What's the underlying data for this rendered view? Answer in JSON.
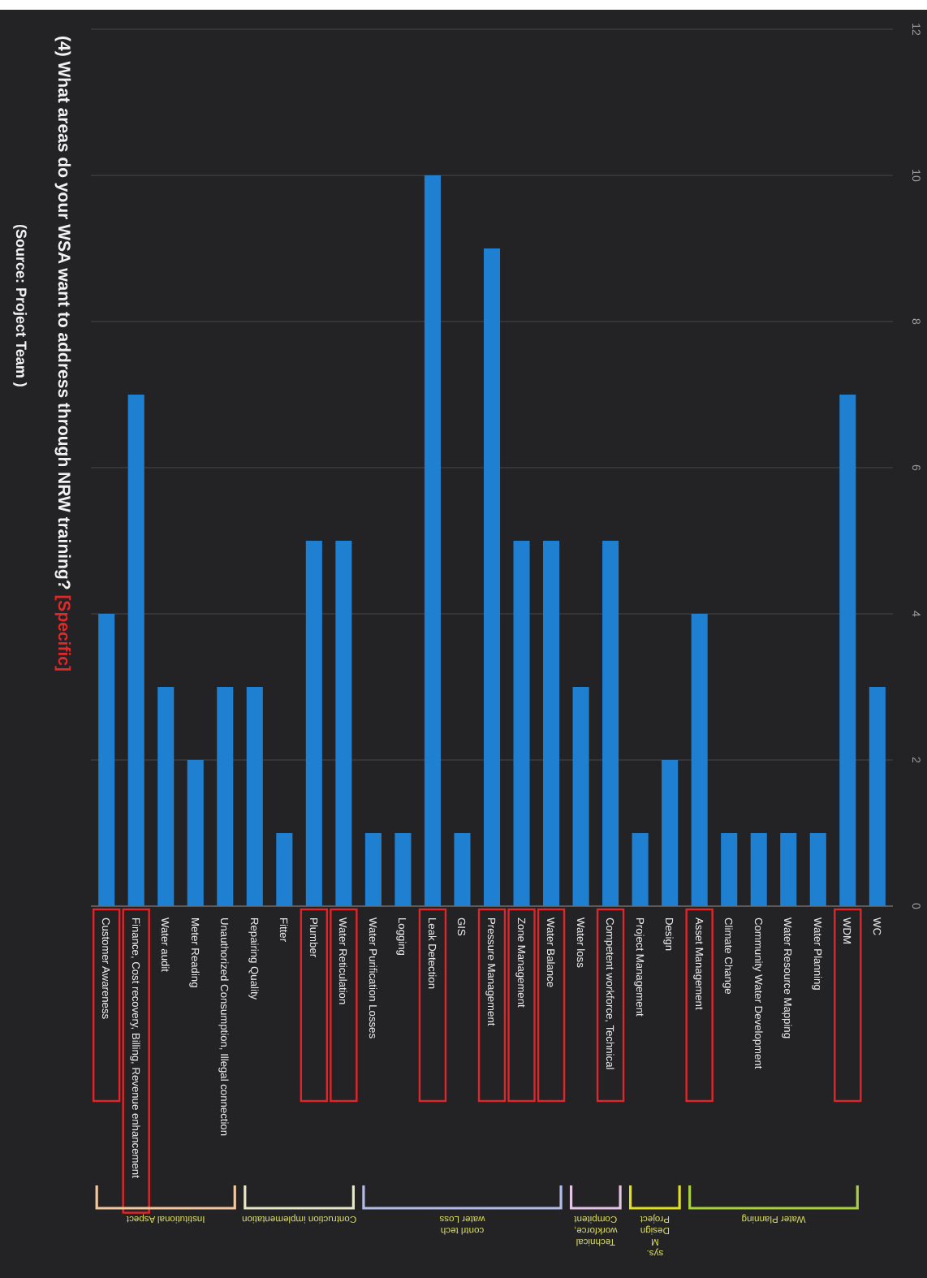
{
  "chart_data": {
    "type": "bar",
    "title": "(4) What areas do your WSA want to address through NRW training?",
    "subtitle": "[Specific]",
    "categories": [
      "Customer Awareness",
      "Finance, Cost recovery, Billing, Revenue enhancement",
      "Water audit",
      "Meter Reading",
      "Unauthorized Consumption, Illegal connection",
      "Repairing Quality",
      "Fitter",
      "Plumber",
      "Water Reticulation",
      "Water Purification Losses",
      "Logging",
      "Leak Detection",
      "GIS",
      "Pressure Management",
      "Zone Management",
      "Water Balance",
      "Water loss",
      "Competent workforce, Technical",
      "Project Management",
      "Design",
      "Asset Management",
      "Climate Change",
      "Community Water Development",
      "Water Resource Mapping",
      "Water Planning",
      "WDM",
      "WC"
    ],
    "values": [
      4,
      7,
      3,
      2,
      3,
      3,
      1,
      5,
      5,
      1,
      1,
      10,
      1,
      9,
      5,
      5,
      3,
      5,
      1,
      2,
      4,
      1,
      1,
      1,
      1,
      7,
      3
    ],
    "color": "#1f7fd0",
    "ylim": [
      0,
      12
    ],
    "yticks": [
      0,
      2,
      4,
      6,
      8,
      10,
      12
    ],
    "grid": "y",
    "annotations": [
      "(Source: Project Team )",
      "Institutional Aspect",
      "Contruction implementation",
      "water Loss contrl tech",
      "Compitent workforce, Technical",
      "Project Design M sys.",
      "Water Planning"
    ]
  }
}
